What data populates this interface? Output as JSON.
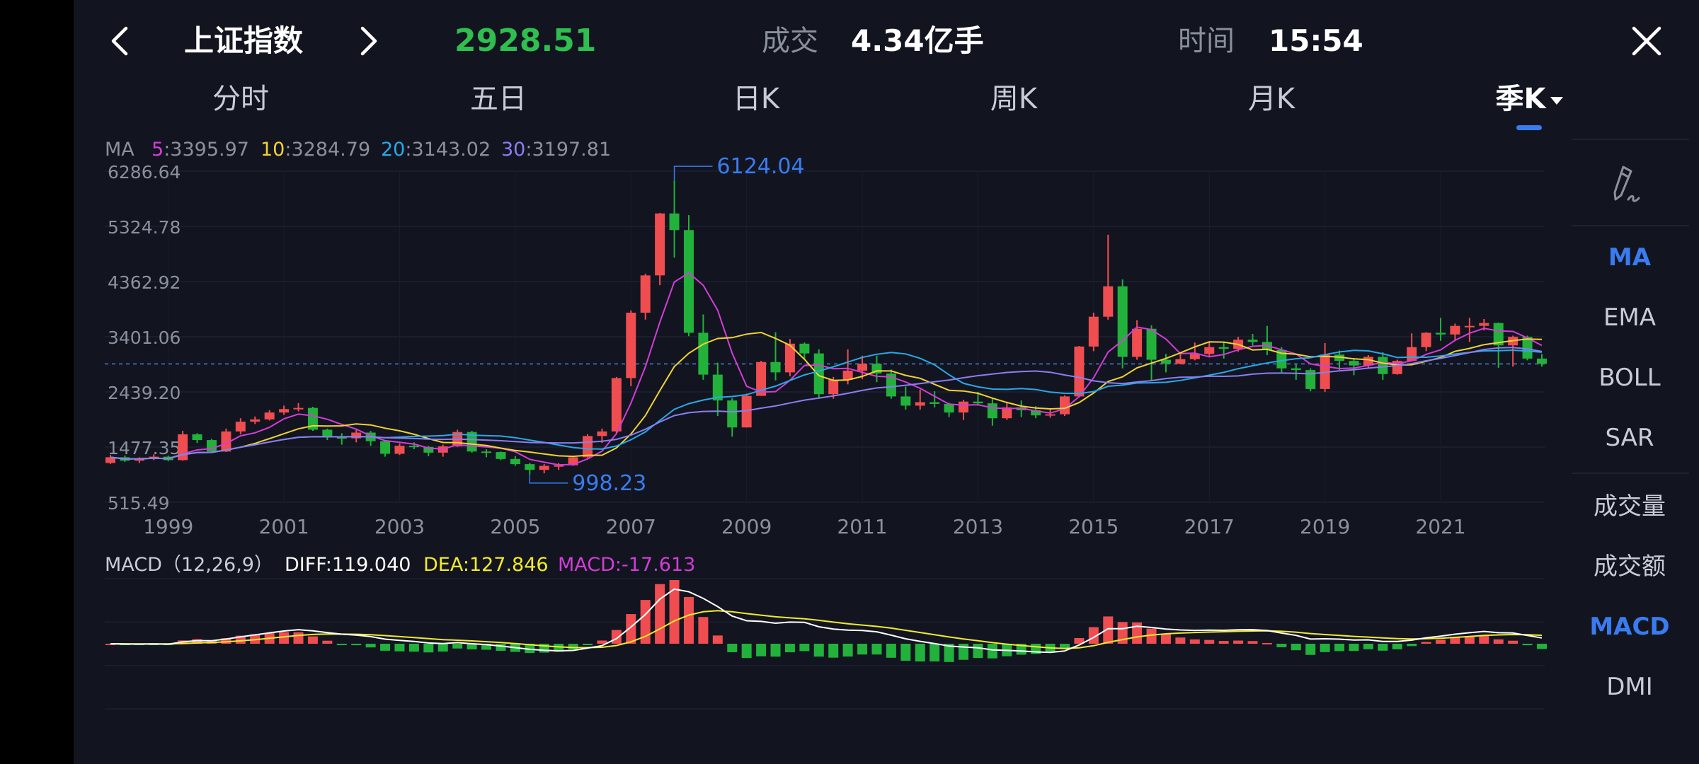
{
  "header": {
    "title": "上证指数",
    "price": "2928.51",
    "price_color": "#2fbf4f",
    "volume_label": "成交",
    "volume_value": "4.34亿手",
    "time_label": "时间",
    "time_value": "15:54"
  },
  "tabs": [
    {
      "label": "分时",
      "active": false
    },
    {
      "label": "五日",
      "active": false
    },
    {
      "label": "日K",
      "active": false
    },
    {
      "label": "周K",
      "active": false
    },
    {
      "label": "月K",
      "active": false
    },
    {
      "label": "季K",
      "active": true
    }
  ],
  "side_buttons": [
    {
      "label": "MA",
      "active": true
    },
    {
      "label": "EMA",
      "active": false
    },
    {
      "label": "BOLL",
      "active": false
    },
    {
      "label": "SAR",
      "active": false
    },
    {
      "label": "成交量",
      "active": false
    },
    {
      "label": "成交额",
      "active": false
    },
    {
      "label": "MACD",
      "active": true
    },
    {
      "label": "DMI",
      "active": false
    }
  ],
  "colors": {
    "up": "#f04d50",
    "down": "#22b13b",
    "ma5": "#d23dd6",
    "ma10": "#f2d230",
    "ma20": "#2aa8e8",
    "ma30": "#8a7ef0",
    "diff": "#ffffff",
    "dea": "#f2ea2b",
    "accent": "#3a7bf0"
  },
  "chart_data": [
    {
      "type": "candlestick",
      "period": "quarterly",
      "legend": {
        "name": "MA",
        "items": [
          {
            "label": "5",
            "value": "3395.97"
          },
          {
            "label": "10",
            "value": "3284.79"
          },
          {
            "label": "20",
            "value": "3143.02"
          },
          {
            "label": "30",
            "value": "3197.81"
          }
        ]
      },
      "y_ticks": [
        "6286.64",
        "5324.78",
        "4362.92",
        "3401.06",
        "2439.20",
        "1477.35",
        "515.49"
      ],
      "ylim": [
        515.49,
        6286.64
      ],
      "x_ticks": [
        "1999",
        "2001",
        "2003",
        "2005",
        "2007",
        "2009",
        "2011",
        "2013",
        "2015",
        "2017",
        "2019",
        "2021"
      ],
      "x_range": [
        1998.0,
        2022.75
      ],
      "annotations": [
        {
          "label": "6124.04",
          "t": 2007.75,
          "value": 6124.04
        },
        {
          "label": "998.23",
          "t": 2005.25,
          "value": 998.23
        }
      ],
      "reference_line": 2928.51,
      "candles": [
        [
          1998.0,
          1200,
          1300,
          1340,
          1180
        ],
        [
          1998.25,
          1300,
          1240,
          1330,
          1220
        ],
        [
          1998.5,
          1240,
          1280,
          1300,
          1200
        ],
        [
          1998.75,
          1280,
          1310,
          1350,
          1250
        ],
        [
          1999.0,
          1310,
          1250,
          1330,
          1230
        ],
        [
          1999.25,
          1250,
          1700,
          1760,
          1240
        ],
        [
          1999.5,
          1700,
          1600,
          1720,
          1550
        ],
        [
          1999.75,
          1600,
          1400,
          1620,
          1380
        ],
        [
          2000.0,
          1400,
          1750,
          1800,
          1390
        ],
        [
          2000.25,
          1750,
          1920,
          1980,
          1700
        ],
        [
          2000.5,
          1920,
          1960,
          2010,
          1880
        ],
        [
          2000.75,
          1960,
          2080,
          2120,
          1940
        ],
        [
          2001.0,
          2080,
          2140,
          2200,
          2040
        ],
        [
          2001.25,
          2140,
          2160,
          2245,
          2100
        ],
        [
          2001.5,
          2160,
          1780,
          2180,
          1760
        ],
        [
          2001.75,
          1780,
          1650,
          1800,
          1600
        ],
        [
          2002.0,
          1650,
          1630,
          1720,
          1520
        ],
        [
          2002.25,
          1630,
          1730,
          1780,
          1560
        ],
        [
          2002.5,
          1730,
          1580,
          1760,
          1500
        ],
        [
          2002.75,
          1580,
          1360,
          1600,
          1310
        ],
        [
          2003.0,
          1360,
          1500,
          1540,
          1340
        ],
        [
          2003.25,
          1500,
          1480,
          1560,
          1440
        ],
        [
          2003.5,
          1480,
          1380,
          1500,
          1320
        ],
        [
          2003.75,
          1380,
          1490,
          1520,
          1310
        ],
        [
          2004.0,
          1490,
          1740,
          1780,
          1480
        ],
        [
          2004.25,
          1740,
          1400,
          1760,
          1380
        ],
        [
          2004.5,
          1400,
          1390,
          1440,
          1300
        ],
        [
          2004.75,
          1390,
          1270,
          1400,
          1250
        ],
        [
          2005.0,
          1270,
          1180,
          1320,
          1150
        ],
        [
          2005.25,
          1180,
          1080,
          1200,
          998
        ],
        [
          2005.5,
          1080,
          1150,
          1180,
          1020
        ],
        [
          2005.75,
          1150,
          1160,
          1200,
          1080
        ],
        [
          2006.0,
          1160,
          1300,
          1320,
          1150
        ],
        [
          2006.25,
          1300,
          1670,
          1700,
          1290
        ],
        [
          2006.5,
          1670,
          1750,
          1800,
          1550
        ],
        [
          2006.75,
          1750,
          2680,
          2700,
          1720
        ],
        [
          2007.0,
          2680,
          3820,
          3860,
          2540
        ],
        [
          2007.25,
          3820,
          4470,
          4500,
          3700
        ],
        [
          2007.5,
          4470,
          5550,
          5560,
          4300
        ],
        [
          2007.75,
          5550,
          5260,
          6124,
          4780
        ],
        [
          2008.0,
          5260,
          3470,
          5520,
          3410
        ],
        [
          2008.25,
          3470,
          2740,
          3790,
          2650
        ],
        [
          2008.5,
          2740,
          2290,
          2950,
          2020
        ],
        [
          2008.75,
          2290,
          1820,
          2330,
          1660
        ],
        [
          2009.0,
          1820,
          2370,
          2410,
          1820
        ],
        [
          2009.25,
          2370,
          2960,
          2980,
          2370
        ],
        [
          2009.5,
          2960,
          2780,
          3480,
          2640
        ],
        [
          2009.75,
          2780,
          3280,
          3360,
          2710
        ],
        [
          2010.0,
          3280,
          3110,
          3300,
          3000
        ],
        [
          2010.25,
          3110,
          2400,
          3180,
          2320
        ],
        [
          2010.5,
          2400,
          2650,
          2700,
          2320
        ],
        [
          2010.75,
          2650,
          2810,
          3180,
          2570
        ],
        [
          2011.0,
          2810,
          2930,
          3070,
          2660
        ],
        [
          2011.25,
          2930,
          2760,
          3070,
          2610
        ],
        [
          2011.5,
          2760,
          2360,
          2830,
          2320
        ],
        [
          2011.75,
          2360,
          2200,
          2530,
          2130
        ],
        [
          2012.0,
          2200,
          2260,
          2480,
          2130
        ],
        [
          2012.25,
          2260,
          2230,
          2450,
          2170
        ],
        [
          2012.5,
          2230,
          2080,
          2250,
          2000
        ],
        [
          2012.75,
          2080,
          2270,
          2300,
          1950
        ],
        [
          2013.0,
          2270,
          2240,
          2440,
          2200
        ],
        [
          2013.25,
          2240,
          1980,
          2340,
          1850
        ],
        [
          2013.5,
          1980,
          2170,
          2270,
          1950
        ],
        [
          2013.75,
          2170,
          2120,
          2290,
          2000
        ],
        [
          2014.0,
          2120,
          2030,
          2190,
          1980
        ],
        [
          2014.25,
          2030,
          2050,
          2150,
          1990
        ],
        [
          2014.5,
          2050,
          2360,
          2380,
          2020
        ],
        [
          2014.75,
          2360,
          3230,
          3240,
          2340
        ],
        [
          2015.0,
          3230,
          3750,
          3820,
          3150
        ],
        [
          2015.25,
          3750,
          4280,
          5178,
          3700
        ],
        [
          2015.5,
          4280,
          3050,
          4400,
          2850
        ],
        [
          2015.75,
          3050,
          3540,
          3690,
          3000
        ],
        [
          2016.0,
          3540,
          3000,
          3600,
          2640
        ],
        [
          2016.25,
          3000,
          2930,
          3100,
          2780
        ],
        [
          2016.5,
          2930,
          3010,
          3100,
          2920
        ],
        [
          2016.75,
          3010,
          3100,
          3300,
          2990
        ],
        [
          2017.0,
          3100,
          3220,
          3300,
          3050
        ],
        [
          2017.25,
          3220,
          3190,
          3300,
          3020
        ],
        [
          2017.5,
          3190,
          3350,
          3400,
          3140
        ],
        [
          2017.75,
          3350,
          3310,
          3450,
          3250
        ],
        [
          2018.0,
          3310,
          3170,
          3590,
          3080
        ],
        [
          2018.25,
          3170,
          2850,
          3220,
          2780
        ],
        [
          2018.5,
          2850,
          2820,
          2920,
          2650
        ],
        [
          2018.75,
          2820,
          2490,
          2850,
          2450
        ],
        [
          2019.0,
          2490,
          3090,
          3290,
          2440
        ],
        [
          2019.25,
          3090,
          2980,
          3160,
          2820
        ],
        [
          2019.5,
          2980,
          2900,
          3030,
          2730
        ],
        [
          2019.75,
          2900,
          3050,
          3080,
          2860
        ],
        [
          2020.0,
          3050,
          2750,
          3130,
          2650
        ],
        [
          2020.25,
          2750,
          2980,
          3000,
          2740
        ],
        [
          2020.5,
          2980,
          3220,
          3460,
          2990
        ],
        [
          2020.75,
          3220,
          3470,
          3480,
          3150
        ],
        [
          2021.0,
          3470,
          3440,
          3730,
          3330
        ],
        [
          2021.25,
          3440,
          3590,
          3630,
          3330
        ],
        [
          2021.5,
          3590,
          3590,
          3730,
          3310
        ],
        [
          2021.75,
          3590,
          3640,
          3710,
          3510
        ],
        [
          2022.0,
          3640,
          3250,
          3650,
          2860
        ],
        [
          2022.25,
          3250,
          3400,
          3420,
          2880
        ],
        [
          2022.5,
          3400,
          3020,
          3420,
          2990
        ],
        [
          2022.75,
          3020,
          2928.51,
          3100,
          2880
        ]
      ]
    },
    {
      "type": "macd",
      "title": "MACD（12,26,9）",
      "legend": [
        {
          "label": "DIFF:119.040"
        },
        {
          "label": "DEA:127.846"
        },
        {
          "label": "MACD:-17.613"
        }
      ],
      "macd": {
        "short": 12,
        "long": 26,
        "signal": 9
      }
    }
  ]
}
